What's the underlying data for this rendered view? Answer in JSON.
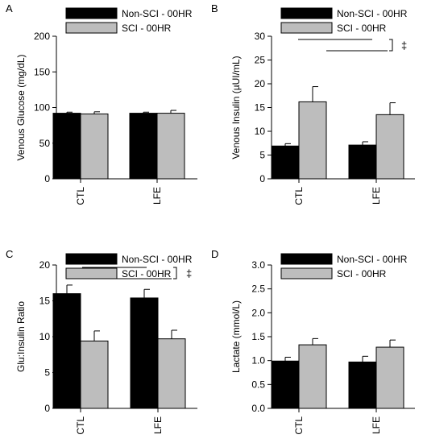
{
  "series_colors": [
    "#000000",
    "#bdbdbd"
  ],
  "chart_data": [
    {
      "type": "bar",
      "panel": "A",
      "ylabel": "Venous Glucose (mg/dL)",
      "ylim": [
        0,
        200
      ],
      "yticks": [
        "0",
        "50",
        "100",
        "150",
        "200"
      ],
      "categories": [
        "CTL",
        "LFE"
      ],
      "legend": "top-left",
      "series": [
        {
          "name": "Non-SCI - 00HR",
          "values": [
            92,
            92
          ],
          "errors": [
            1.5,
            1.5
          ]
        },
        {
          "name": "SCI - 00HR",
          "values": [
            91,
            92
          ],
          "errors": [
            3,
            4
          ]
        }
      ],
      "annotations": []
    },
    {
      "type": "bar",
      "panel": "B",
      "ylabel": "Venous Insulin (µUI/mL)",
      "ylim": [
        0,
        30
      ],
      "yticks": [
        "0",
        "5",
        "10",
        "15",
        "20",
        "25",
        "30"
      ],
      "categories": [
        "CTL",
        "LFE"
      ],
      "legend": "top-left",
      "series": [
        {
          "name": "Non-SCI - 00HR",
          "values": [
            6.9,
            7.1
          ],
          "errors": [
            0.5,
            0.7
          ]
        },
        {
          "name": "SCI - 00HR",
          "values": [
            16.2,
            13.5
          ],
          "errors": [
            3.2,
            2.5
          ]
        }
      ],
      "annotations": [
        "‡"
      ]
    },
    {
      "type": "bar",
      "panel": "C",
      "ylabel": "Glu:Insulin Ratio",
      "ylim": [
        0,
        20
      ],
      "yticks": [
        "0",
        "5",
        "10",
        "15",
        "20"
      ],
      "categories": [
        "CTL",
        "LFE"
      ],
      "legend": "top-left",
      "series": [
        {
          "name": "Non-SCI - 00HR",
          "values": [
            16.0,
            15.4
          ],
          "errors": [
            1.2,
            1.2
          ]
        },
        {
          "name": "SCI - 00HR",
          "values": [
            9.4,
            9.7
          ],
          "errors": [
            1.4,
            1.2
          ]
        }
      ],
      "annotations": [
        "‡"
      ]
    },
    {
      "type": "bar",
      "panel": "D",
      "ylabel": "Lactate (mmol/L)",
      "ylim": [
        0,
        3
      ],
      "yticks": [
        "0.0",
        "0.5",
        "1.0",
        "1.5",
        "2.0",
        "2.5",
        "3.0"
      ],
      "categories": [
        "CTL",
        "LFE"
      ],
      "legend": "top-left",
      "series": [
        {
          "name": "Non-SCI - 00HR",
          "values": [
            0.99,
            0.97
          ],
          "errors": [
            0.08,
            0.12
          ]
        },
        {
          "name": "SCI - 00HR",
          "values": [
            1.33,
            1.28
          ],
          "errors": [
            0.13,
            0.15
          ]
        }
      ],
      "annotations": []
    }
  ]
}
